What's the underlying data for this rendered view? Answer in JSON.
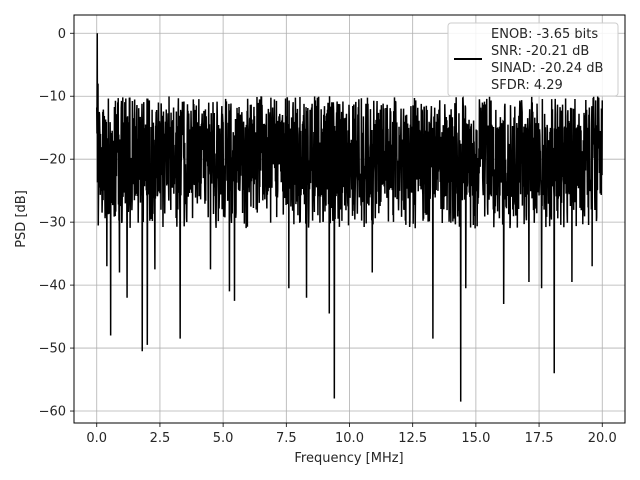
{
  "chart_data": {
    "type": "line",
    "xlabel": "Frequency [MHz]",
    "ylabel": "PSD [dB]",
    "xlim": [
      -0.9,
      20.9
    ],
    "ylim": [
      -61.9,
      2.9
    ],
    "xticks": [
      0.0,
      2.5,
      5.0,
      7.5,
      10.0,
      12.5,
      15.0,
      17.5,
      20.0
    ],
    "xtick_labels": [
      "0.0",
      "2.5",
      "5.0",
      "7.5",
      "10.0",
      "12.5",
      "15.0",
      "17.5",
      "20.0"
    ],
    "yticks": [
      0,
      -10,
      -20,
      -30,
      -40,
      -50,
      -60
    ],
    "ytick_labels": [
      "0",
      "−10",
      "−20",
      "−30",
      "−40",
      "−50",
      "−60"
    ],
    "grid": true,
    "legend_position": "top-right",
    "legend_lines": [
      "ENOB: -3.65 bits",
      "SNR: -20.21 dB",
      "SINAD: -20.24 dB",
      "SFDR: 4.29"
    ],
    "series_color": "#000000",
    "grid_color": "#b0b0b0",
    "noise": {
      "x_range": [
        0.0,
        20.0
      ],
      "samples": 2000,
      "band_top": -10,
      "band_bottom": -31,
      "typical_center": -20
    },
    "peaks": [
      {
        "x": 0.02,
        "y": 0.0
      },
      {
        "x": 0.05,
        "y": -8.0
      },
      {
        "x": 0.1,
        "y": -12.5
      },
      {
        "x": 0.15,
        "y": -16.0
      }
    ],
    "dips": [
      {
        "x": 0.25,
        "y": -26.5
      },
      {
        "x": 0.4,
        "y": -37.0
      },
      {
        "x": 0.55,
        "y": -48.0
      },
      {
        "x": 0.9,
        "y": -38.0
      },
      {
        "x": 1.2,
        "y": -42.0
      },
      {
        "x": 1.8,
        "y": -50.5
      },
      {
        "x": 2.0,
        "y": -49.5
      },
      {
        "x": 2.3,
        "y": -37.5
      },
      {
        "x": 3.3,
        "y": -48.5
      },
      {
        "x": 4.5,
        "y": -37.5
      },
      {
        "x": 5.25,
        "y": -41.0
      },
      {
        "x": 5.45,
        "y": -42.5
      },
      {
        "x": 7.6,
        "y": -40.5
      },
      {
        "x": 8.3,
        "y": -42.0
      },
      {
        "x": 9.2,
        "y": -44.5
      },
      {
        "x": 9.4,
        "y": -58.0
      },
      {
        "x": 10.9,
        "y": -38.0
      },
      {
        "x": 13.3,
        "y": -48.5
      },
      {
        "x": 14.4,
        "y": -58.5
      },
      {
        "x": 14.6,
        "y": -40.5
      },
      {
        "x": 16.1,
        "y": -43.0
      },
      {
        "x": 17.1,
        "y": -39.5
      },
      {
        "x": 17.6,
        "y": -40.5
      },
      {
        "x": 18.1,
        "y": -54.0
      },
      {
        "x": 18.8,
        "y": -39.5
      },
      {
        "x": 19.6,
        "y": -37.0
      }
    ]
  }
}
